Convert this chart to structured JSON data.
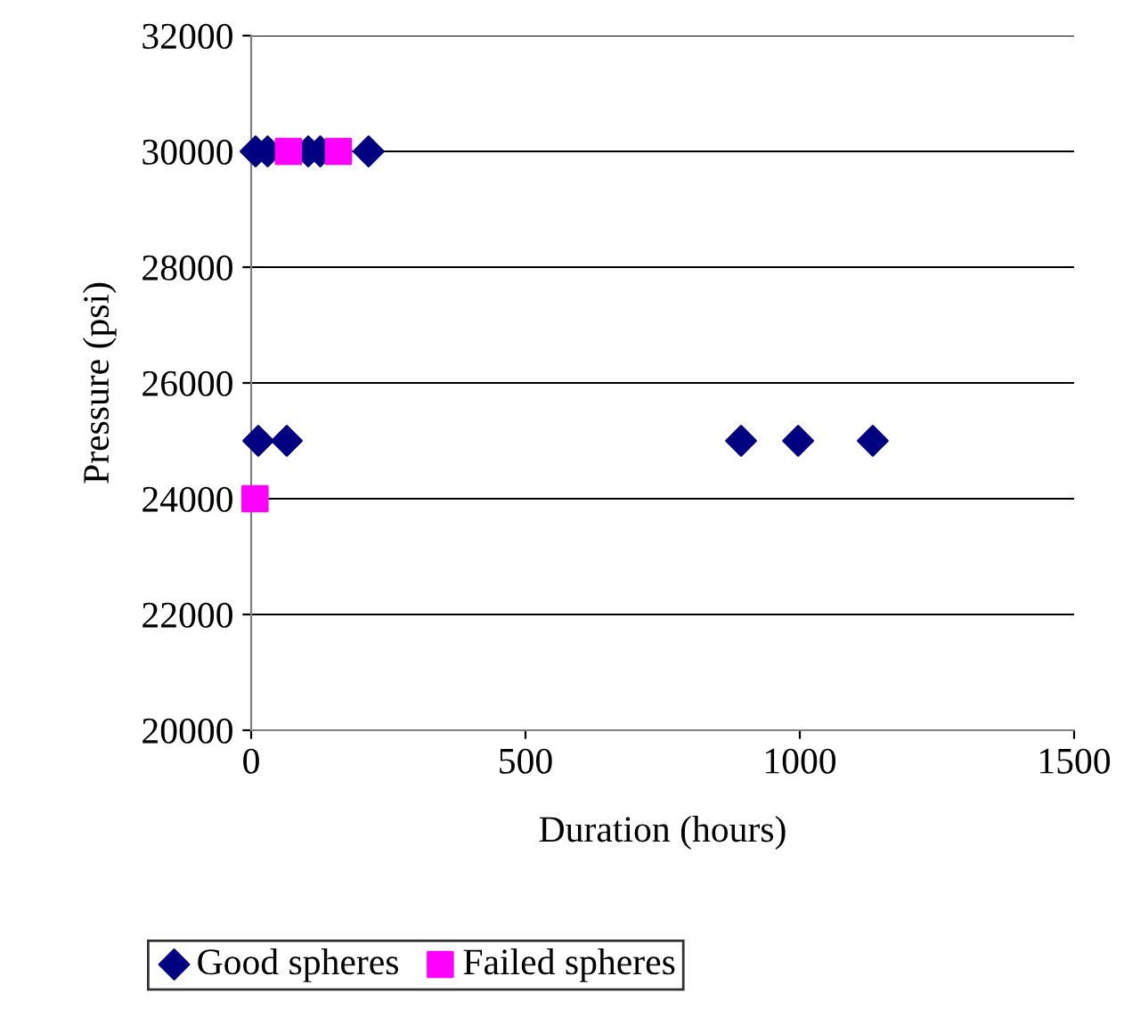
{
  "chart_data": {
    "type": "scatter",
    "xlabel": "Duration (hours)",
    "ylabel": "Pressure (psi)",
    "xlim": [
      0,
      1500
    ],
    "xticks": [
      0,
      500,
      1000,
      1500
    ],
    "ylim": [
      20000,
      32000
    ],
    "yticks": [
      20000,
      22000,
      24000,
      26000,
      28000,
      30000,
      32000
    ],
    "grid": "y",
    "legend": "bottom",
    "series": [
      {
        "name": "Good spheres",
        "color": "#000080",
        "marker": "diamond",
        "x": [
          8,
          30,
          104,
          126,
          214,
          13,
          65,
          893,
          997,
          1133
        ],
        "values": [
          30000,
          30000,
          30000,
          30000,
          30000,
          25000,
          25000,
          25000,
          25000,
          25000
        ]
      },
      {
        "name": "Failed spheres",
        "color": "#ff00ff",
        "marker": "square",
        "x": [
          68,
          159,
          7
        ],
        "values": [
          30000,
          30000,
          24000
        ]
      }
    ]
  }
}
